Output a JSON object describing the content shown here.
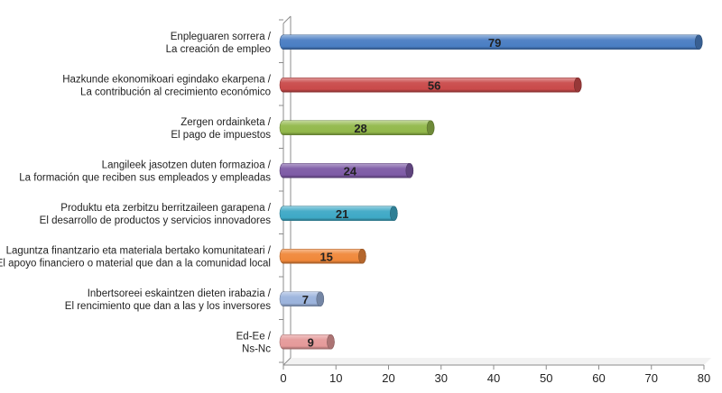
{
  "chart_data": {
    "type": "bar",
    "orientation": "horizontal",
    "style": "3d-cylinder",
    "categories": [
      [
        "Enpleguaren sorrera /",
        "La creación de empleo"
      ],
      [
        "Hazkunde ekonomikoari egindako ekarpena /",
        "La contribución al crecimiento económico"
      ],
      [
        "Zergen ordainketa /",
        "El pago de impuestos"
      ],
      [
        "Langileek jasotzen duten formazioa /",
        "La formación que reciben sus empleados y empleadas"
      ],
      [
        "Produktu eta zerbitzu berritzaileen garapena /",
        "El desarrollo de productos y servicios innovadores"
      ],
      [
        "Laguntza finantzario eta materiala bertako komunitateari /",
        "El apoyo financiero o material que dan a la comunidad local"
      ],
      [
        "Inbertsoreei eskaintzen dieten irabazia /",
        "El rencimiento que dan a las y los inversores"
      ],
      [
        "Ed-Ee /",
        "Ns-Nc"
      ]
    ],
    "values": [
      79,
      56,
      28,
      24,
      21,
      15,
      7,
      9
    ],
    "colors": [
      "#4a7ec3",
      "#c94a4a",
      "#92b84a",
      "#7e5ba6",
      "#3ea9c6",
      "#f0883a",
      "#9bb3dc",
      "#e59a9a"
    ],
    "xlim": [
      0,
      80
    ],
    "xticks": [
      0,
      10,
      20,
      30,
      40,
      50,
      60,
      70,
      80
    ],
    "grid": false,
    "legend": "none"
  }
}
